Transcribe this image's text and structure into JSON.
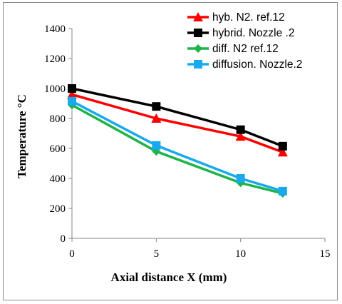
{
  "chart_data": {
    "type": "line",
    "xlabel": "Axial  distance  X (mm)",
    "ylabel": "Temperature   °C",
    "xlim": [
      0,
      15
    ],
    "ylim": [
      0,
      1400
    ],
    "xticks": [
      0,
      5,
      10,
      15
    ],
    "yticks": [
      0,
      200,
      400,
      600,
      800,
      1000,
      1200,
      1400
    ],
    "grid": false,
    "legend_position": "top-right",
    "series": [
      {
        "name": "hyb. N2. ref.12",
        "color": "#ff0000",
        "marker": "triangle",
        "x": [
          0,
          5,
          10,
          12.5
        ],
        "y": [
          960,
          800,
          680,
          575
        ]
      },
      {
        "name": "hybrid. Nozzle .2",
        "color": "#000000",
        "marker": "square",
        "x": [
          0,
          5,
          10,
          12.5
        ],
        "y": [
          1000,
          880,
          725,
          615
        ]
      },
      {
        "name": "diff. N2 ref.12",
        "color": "#1fb44a",
        "marker": "diamond",
        "x": [
          0,
          5,
          10,
          12.5
        ],
        "y": [
          890,
          580,
          370,
          300
        ]
      },
      {
        "name": "diffusion. Nozzle.2",
        "color": "#18a9ee",
        "marker": "square",
        "x": [
          0,
          5,
          10,
          12.5
        ],
        "y": [
          915,
          620,
          400,
          315
        ]
      }
    ]
  }
}
